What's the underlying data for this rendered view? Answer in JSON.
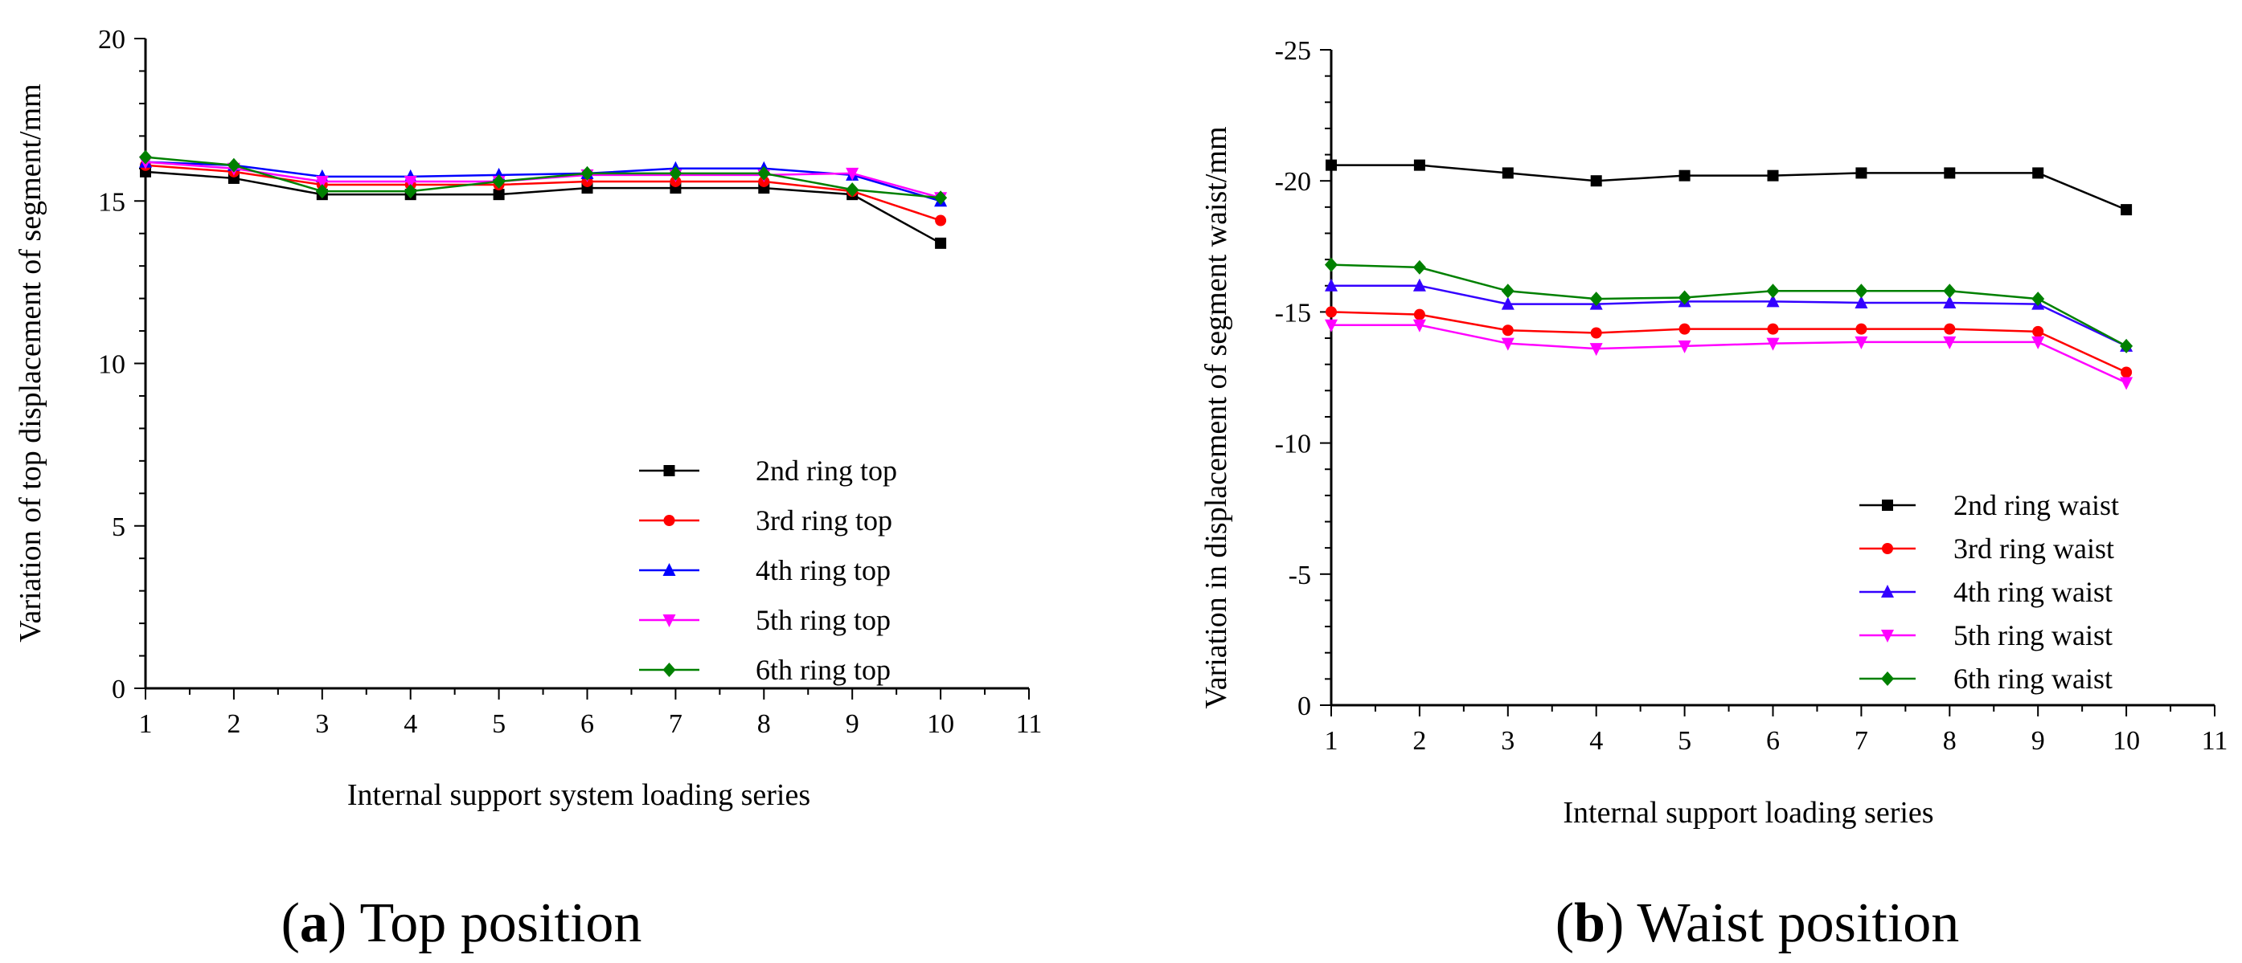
{
  "chart_data": [
    {
      "type": "line",
      "panel_letter": "a",
      "caption": "Top position",
      "title": "",
      "xlabel": "Internal support system loading series",
      "ylabel": "Variation of top displacement of segment/mm",
      "xlim": [
        1,
        11
      ],
      "ylim": [
        0,
        20
      ],
      "y_inverted": false,
      "x_ticks": [
        "1",
        "2",
        "3",
        "4",
        "5",
        "6",
        "7",
        "8",
        "9",
        "10",
        "11"
      ],
      "y_ticks": [
        "0",
        "5",
        "10",
        "15",
        "20"
      ],
      "legend_position": "bottom-right",
      "x": [
        1,
        2,
        3,
        4,
        5,
        6,
        7,
        8,
        9,
        10
      ],
      "series": [
        {
          "name": "2nd ring top",
          "color": "#000000",
          "marker": "square",
          "values": [
            15.9,
            15.7,
            15.2,
            15.2,
            15.2,
            15.4,
            15.4,
            15.4,
            15.2,
            13.7
          ]
        },
        {
          "name": "3rd ring top",
          "color": "#ff0000",
          "marker": "circle",
          "values": [
            16.1,
            15.9,
            15.5,
            15.5,
            15.5,
            15.6,
            15.6,
            15.6,
            15.3,
            14.4
          ]
        },
        {
          "name": "4th ring top",
          "color": "#0000ff",
          "marker": "triangle-up",
          "values": [
            16.2,
            16.1,
            15.75,
            15.75,
            15.8,
            15.85,
            16.0,
            16.0,
            15.8,
            15.0
          ]
        },
        {
          "name": "5th ring top",
          "color": "#ff00ff",
          "marker": "triangle-down",
          "values": [
            16.2,
            16.0,
            15.6,
            15.6,
            15.6,
            15.8,
            15.8,
            15.8,
            15.85,
            15.1
          ]
        },
        {
          "name": "6th ring top",
          "color": "#008000",
          "marker": "diamond",
          "values": [
            16.35,
            16.1,
            15.3,
            15.3,
            15.6,
            15.85,
            15.85,
            15.85,
            15.35,
            15.1
          ]
        }
      ]
    },
    {
      "type": "line",
      "panel_letter": "b",
      "caption": "Waist position",
      "title": "",
      "xlabel": "Internal support loading series",
      "ylabel": "Variation in displacement of segment waist/mm",
      "xlim": [
        1,
        11
      ],
      "ylim": [
        0,
        -25
      ],
      "y_inverted": true,
      "x_ticks": [
        "1",
        "2",
        "3",
        "4",
        "5",
        "6",
        "7",
        "8",
        "9",
        "10",
        "11"
      ],
      "y_ticks": [
        "0",
        "-5",
        "-10",
        "-15",
        "-20",
        "-25"
      ],
      "legend_position": "bottom-right",
      "x": [
        1,
        2,
        3,
        4,
        5,
        6,
        7,
        8,
        9,
        10
      ],
      "series": [
        {
          "name": "2nd ring waist",
          "color": "#000000",
          "marker": "square",
          "values": [
            -20.6,
            -20.6,
            -20.3,
            -20.0,
            -20.2,
            -20.2,
            -20.3,
            -20.3,
            -20.3,
            -18.9
          ]
        },
        {
          "name": "3rd ring waist",
          "color": "#ff0000",
          "marker": "circle",
          "values": [
            -15.0,
            -14.9,
            -14.3,
            -14.2,
            -14.35,
            -14.35,
            -14.35,
            -14.35,
            -14.25,
            -12.7
          ]
        },
        {
          "name": "4th ring waist",
          "color": "#3300ff",
          "marker": "triangle-up",
          "values": [
            -16.0,
            -16.0,
            -15.3,
            -15.3,
            -15.4,
            -15.4,
            -15.35,
            -15.35,
            -15.3,
            -13.7
          ]
        },
        {
          "name": "5th ring waist",
          "color": "#ff00ff",
          "marker": "triangle-down",
          "values": [
            -14.5,
            -14.5,
            -13.8,
            -13.6,
            -13.7,
            -13.8,
            -13.85,
            -13.85,
            -13.85,
            -12.3
          ]
        },
        {
          "name": "6th ring waist",
          "color": "#008000",
          "marker": "diamond",
          "values": [
            -16.8,
            -16.7,
            -15.8,
            -15.5,
            -15.55,
            -15.8,
            -15.8,
            -15.8,
            -15.5,
            -13.7
          ]
        }
      ]
    }
  ]
}
